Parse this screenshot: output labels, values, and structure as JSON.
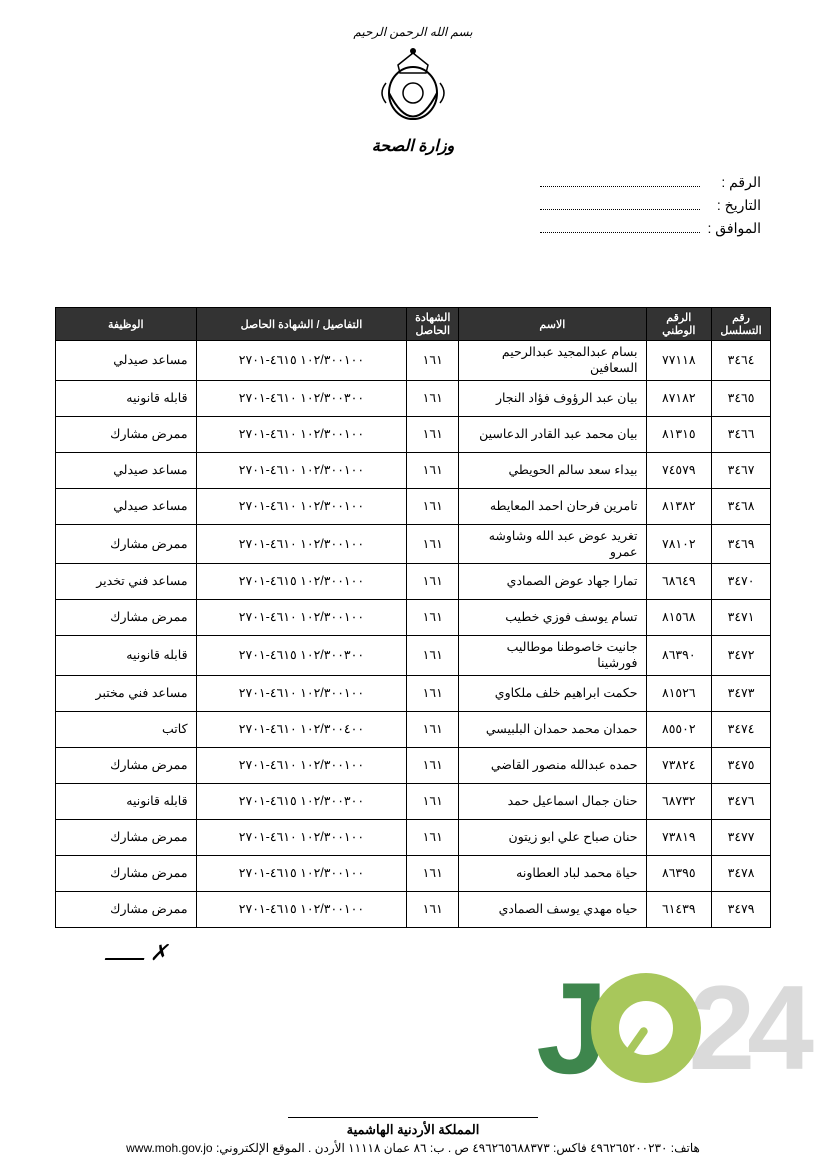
{
  "header": {
    "bismillah": "بسم الله الرحمن الرحيم",
    "ministry": "وزارة الصحة"
  },
  "meta": {
    "number_label": "الرقم :",
    "date_label": "التاريخ :",
    "corresponding_label": "الموافق :"
  },
  "table": {
    "headers": {
      "seq": "رقم التسلسل",
      "nat_id": "الرقم الوطني",
      "name": "الاسم",
      "cert_loc": "الشهادة الحاصل",
      "cert_no": "التفاصيل / الشهادة الحاصل",
      "job": "الوظيفة"
    },
    "rows": [
      {
        "seq": "٣٤٦٤",
        "nat": "٧٧١١٨",
        "name": "بسام عبدالمجيد عبدالرحيم السعافين",
        "cert": "١٦١",
        "certno": "١٠٢/٣٠٠١٠٠ ٤٦١٥-٢٧٠١",
        "job": "مساعد صيدلي"
      },
      {
        "seq": "٣٤٦٥",
        "nat": "٨٧١٨٢",
        "name": "بيان عبد الرؤوف فؤاد النجار",
        "cert": "١٦١",
        "certno": "١٠٢/٣٠٠٣٠٠ ٤٦١٠-٢٧٠١",
        "job": "قابله قانونيه"
      },
      {
        "seq": "٣٤٦٦",
        "nat": "٨١٣١٥",
        "name": "بيان محمد عبد القادر الدعاسين",
        "cert": "١٦١",
        "certno": "١٠٢/٣٠٠١٠٠ ٤٦١٠-٢٧٠١",
        "job": "ممرض مشارك"
      },
      {
        "seq": "٣٤٦٧",
        "nat": "٧٤٥٧٩",
        "name": "بيداء سعد سالم الحويطي",
        "cert": "١٦١",
        "certno": "١٠٢/٣٠٠١٠٠ ٤٦١٠-٢٧٠١",
        "job": "مساعد صيدلي"
      },
      {
        "seq": "٣٤٦٨",
        "nat": "٨١٣٨٢",
        "name": "تامرين فرحان احمد المعايطه",
        "cert": "١٦١",
        "certno": "١٠٢/٣٠٠١٠٠ ٤٦١٠-٢٧٠١",
        "job": "مساعد صيدلي"
      },
      {
        "seq": "٣٤٦٩",
        "nat": "٧٨١٠٢",
        "name": "تغريد عوض عبد الله وشاوشه عمرو",
        "cert": "١٦١",
        "certno": "١٠٢/٣٠٠١٠٠ ٤٦١٠-٢٧٠١",
        "job": "ممرض مشارك"
      },
      {
        "seq": "٣٤٧٠",
        "nat": "٦٨٦٤٩",
        "name": "تمارا جهاد عوض الصمادي",
        "cert": "١٦١",
        "certno": "١٠٢/٣٠٠١٠٠ ٤٦١٥-٢٧٠١",
        "job": "مساعد فني تخدير"
      },
      {
        "seq": "٣٤٧١",
        "nat": "٨١٥٦٨",
        "name": "تسام يوسف فوزي خطيب",
        "cert": "١٦١",
        "certno": "١٠٢/٣٠٠١٠٠ ٤٦١٠-٢٧٠١",
        "job": "ممرض مشارك"
      },
      {
        "seq": "٣٤٧٢",
        "nat": "٨٦٣٩٠",
        "name": "جانيت خاصوطنا موطاليب فورشينا",
        "cert": "١٦١",
        "certno": "١٠٢/٣٠٠٣٠٠ ٤٦١٥-٢٧٠١",
        "job": "قابله قانونيه"
      },
      {
        "seq": "٣٤٧٣",
        "nat": "٨١٥٢٦",
        "name": "حكمت ابراهيم خلف ملكاوي",
        "cert": "١٦١",
        "certno": "١٠٢/٣٠٠١٠٠ ٤٦١٠-٢٧٠١",
        "job": "مساعد فني مختبر"
      },
      {
        "seq": "٣٤٧٤",
        "nat": "٨٥٥٠٢",
        "name": "حمدان محمد حمدان البلبيسي",
        "cert": "١٦١",
        "certno": "١٠٢/٣٠٠٤٠٠ ٤٦١٠-٢٧٠١",
        "job": "كاتب"
      },
      {
        "seq": "٣٤٧٥",
        "nat": "٧٣٨٢٤",
        "name": "حمده عبدالله منصور القاضي",
        "cert": "١٦١",
        "certno": "١٠٢/٣٠٠١٠٠ ٤٦١٠-٢٧٠١",
        "job": "ممرض مشارك"
      },
      {
        "seq": "٣٤٧٦",
        "nat": "٦٨٧٣٢",
        "name": "حنان جمال اسماعيل حمد",
        "cert": "١٦١",
        "certno": "١٠٢/٣٠٠٣٠٠ ٤٦١٥-٢٧٠١",
        "job": "قابله قانونيه"
      },
      {
        "seq": "٣٤٧٧",
        "nat": "٧٣٨١٩",
        "name": "حنان صباح علي ابو زيتون",
        "cert": "١٦١",
        "certno": "١٠٢/٣٠٠١٠٠ ٤٦١٠-٢٧٠١",
        "job": "ممرض مشارك"
      },
      {
        "seq": "٣٤٧٨",
        "nat": "٨٦٣٩٥",
        "name": "حياة محمد لباد العطاونه",
        "cert": "١٦١",
        "certno": "١٠٢/٣٠٠١٠٠ ٤٦١٥-٢٧٠١",
        "job": "ممرض مشارك"
      },
      {
        "seq": "٣٤٧٩",
        "nat": "٦١٤٣٩",
        "name": "حياه مهدي يوسف الصمادي",
        "cert": "١٦١",
        "certno": "١٠٢/٣٠٠١٠٠ ٤٦١٥-٢٧٠١",
        "job": "ممرض مشارك"
      }
    ]
  },
  "footer": {
    "kingdom": "المملكة الأردنية الهاشمية",
    "contact": "هاتف: ٤٩٦٢٦٥٢٠٠٢٣٠ فاكس: ٤٩٦٢٦٥٦٨٨٣٧٣ ص . ب: ٨٦ عمان ١١١١٨ الأردن . الموقع الإلكتروني: www.moh.gov.jo"
  },
  "watermark": {
    "j": "J",
    "n24": "24"
  }
}
